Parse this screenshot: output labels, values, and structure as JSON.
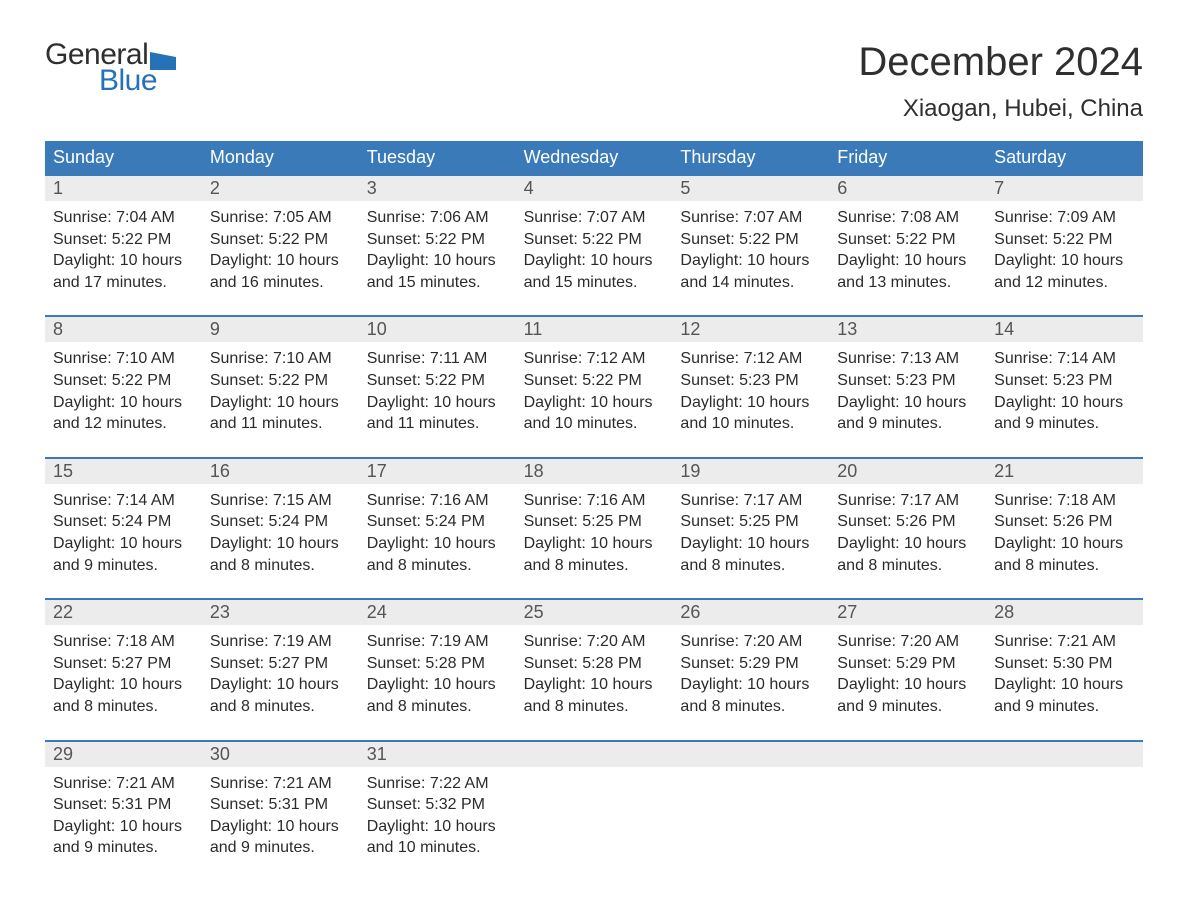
{
  "brand": {
    "text1": "General",
    "text2": "Blue",
    "flag_color": "#2572b7"
  },
  "header": {
    "month_title": "December 2024",
    "location": "Xiaogan, Hubei, China"
  },
  "colors": {
    "header_bg": "#3b7ab8",
    "header_fg": "#ffffff",
    "band_bg": "#ececec",
    "band_fg": "#555555",
    "body_fg": "#2b2b2b",
    "rule": "#3b7ab8",
    "page_bg": "#ffffff"
  },
  "typography": {
    "month_title_pt": 40,
    "location_pt": 24,
    "dow_pt": 18,
    "daynum_pt": 18,
    "body_pt": 16
  },
  "days_of_week": [
    "Sunday",
    "Monday",
    "Tuesday",
    "Wednesday",
    "Thursday",
    "Friday",
    "Saturday"
  ],
  "labels": {
    "sunrise": "Sunrise:",
    "sunset": "Sunset:",
    "daylight": "Daylight:"
  },
  "weeks": [
    [
      {
        "n": "1",
        "sunrise": "7:04 AM",
        "sunset": "5:22 PM",
        "day_l1": "10 hours",
        "day_l2": "and 17 minutes."
      },
      {
        "n": "2",
        "sunrise": "7:05 AM",
        "sunset": "5:22 PM",
        "day_l1": "10 hours",
        "day_l2": "and 16 minutes."
      },
      {
        "n": "3",
        "sunrise": "7:06 AM",
        "sunset": "5:22 PM",
        "day_l1": "10 hours",
        "day_l2": "and 15 minutes."
      },
      {
        "n": "4",
        "sunrise": "7:07 AM",
        "sunset": "5:22 PM",
        "day_l1": "10 hours",
        "day_l2": "and 15 minutes."
      },
      {
        "n": "5",
        "sunrise": "7:07 AM",
        "sunset": "5:22 PM",
        "day_l1": "10 hours",
        "day_l2": "and 14 minutes."
      },
      {
        "n": "6",
        "sunrise": "7:08 AM",
        "sunset": "5:22 PM",
        "day_l1": "10 hours",
        "day_l2": "and 13 minutes."
      },
      {
        "n": "7",
        "sunrise": "7:09 AM",
        "sunset": "5:22 PM",
        "day_l1": "10 hours",
        "day_l2": "and 12 minutes."
      }
    ],
    [
      {
        "n": "8",
        "sunrise": "7:10 AM",
        "sunset": "5:22 PM",
        "day_l1": "10 hours",
        "day_l2": "and 12 minutes."
      },
      {
        "n": "9",
        "sunrise": "7:10 AM",
        "sunset": "5:22 PM",
        "day_l1": "10 hours",
        "day_l2": "and 11 minutes."
      },
      {
        "n": "10",
        "sunrise": "7:11 AM",
        "sunset": "5:22 PM",
        "day_l1": "10 hours",
        "day_l2": "and 11 minutes."
      },
      {
        "n": "11",
        "sunrise": "7:12 AM",
        "sunset": "5:22 PM",
        "day_l1": "10 hours",
        "day_l2": "and 10 minutes."
      },
      {
        "n": "12",
        "sunrise": "7:12 AM",
        "sunset": "5:23 PM",
        "day_l1": "10 hours",
        "day_l2": "and 10 minutes."
      },
      {
        "n": "13",
        "sunrise": "7:13 AM",
        "sunset": "5:23 PM",
        "day_l1": "10 hours",
        "day_l2": "and 9 minutes."
      },
      {
        "n": "14",
        "sunrise": "7:14 AM",
        "sunset": "5:23 PM",
        "day_l1": "10 hours",
        "day_l2": "and 9 minutes."
      }
    ],
    [
      {
        "n": "15",
        "sunrise": "7:14 AM",
        "sunset": "5:24 PM",
        "day_l1": "10 hours",
        "day_l2": "and 9 minutes."
      },
      {
        "n": "16",
        "sunrise": "7:15 AM",
        "sunset": "5:24 PM",
        "day_l1": "10 hours",
        "day_l2": "and 8 minutes."
      },
      {
        "n": "17",
        "sunrise": "7:16 AM",
        "sunset": "5:24 PM",
        "day_l1": "10 hours",
        "day_l2": "and 8 minutes."
      },
      {
        "n": "18",
        "sunrise": "7:16 AM",
        "sunset": "5:25 PM",
        "day_l1": "10 hours",
        "day_l2": "and 8 minutes."
      },
      {
        "n": "19",
        "sunrise": "7:17 AM",
        "sunset": "5:25 PM",
        "day_l1": "10 hours",
        "day_l2": "and 8 minutes."
      },
      {
        "n": "20",
        "sunrise": "7:17 AM",
        "sunset": "5:26 PM",
        "day_l1": "10 hours",
        "day_l2": "and 8 minutes."
      },
      {
        "n": "21",
        "sunrise": "7:18 AM",
        "sunset": "5:26 PM",
        "day_l1": "10 hours",
        "day_l2": "and 8 minutes."
      }
    ],
    [
      {
        "n": "22",
        "sunrise": "7:18 AM",
        "sunset": "5:27 PM",
        "day_l1": "10 hours",
        "day_l2": "and 8 minutes."
      },
      {
        "n": "23",
        "sunrise": "7:19 AM",
        "sunset": "5:27 PM",
        "day_l1": "10 hours",
        "day_l2": "and 8 minutes."
      },
      {
        "n": "24",
        "sunrise": "7:19 AM",
        "sunset": "5:28 PM",
        "day_l1": "10 hours",
        "day_l2": "and 8 minutes."
      },
      {
        "n": "25",
        "sunrise": "7:20 AM",
        "sunset": "5:28 PM",
        "day_l1": "10 hours",
        "day_l2": "and 8 minutes."
      },
      {
        "n": "26",
        "sunrise": "7:20 AM",
        "sunset": "5:29 PM",
        "day_l1": "10 hours",
        "day_l2": "and 8 minutes."
      },
      {
        "n": "27",
        "sunrise": "7:20 AM",
        "sunset": "5:29 PM",
        "day_l1": "10 hours",
        "day_l2": "and 9 minutes."
      },
      {
        "n": "28",
        "sunrise": "7:21 AM",
        "sunset": "5:30 PM",
        "day_l1": "10 hours",
        "day_l2": "and 9 minutes."
      }
    ],
    [
      {
        "n": "29",
        "sunrise": "7:21 AM",
        "sunset": "5:31 PM",
        "day_l1": "10 hours",
        "day_l2": "and 9 minutes."
      },
      {
        "n": "30",
        "sunrise": "7:21 AM",
        "sunset": "5:31 PM",
        "day_l1": "10 hours",
        "day_l2": "and 9 minutes."
      },
      {
        "n": "31",
        "sunrise": "7:22 AM",
        "sunset": "5:32 PM",
        "day_l1": "10 hours",
        "day_l2": "and 10 minutes."
      },
      null,
      null,
      null,
      null
    ]
  ]
}
